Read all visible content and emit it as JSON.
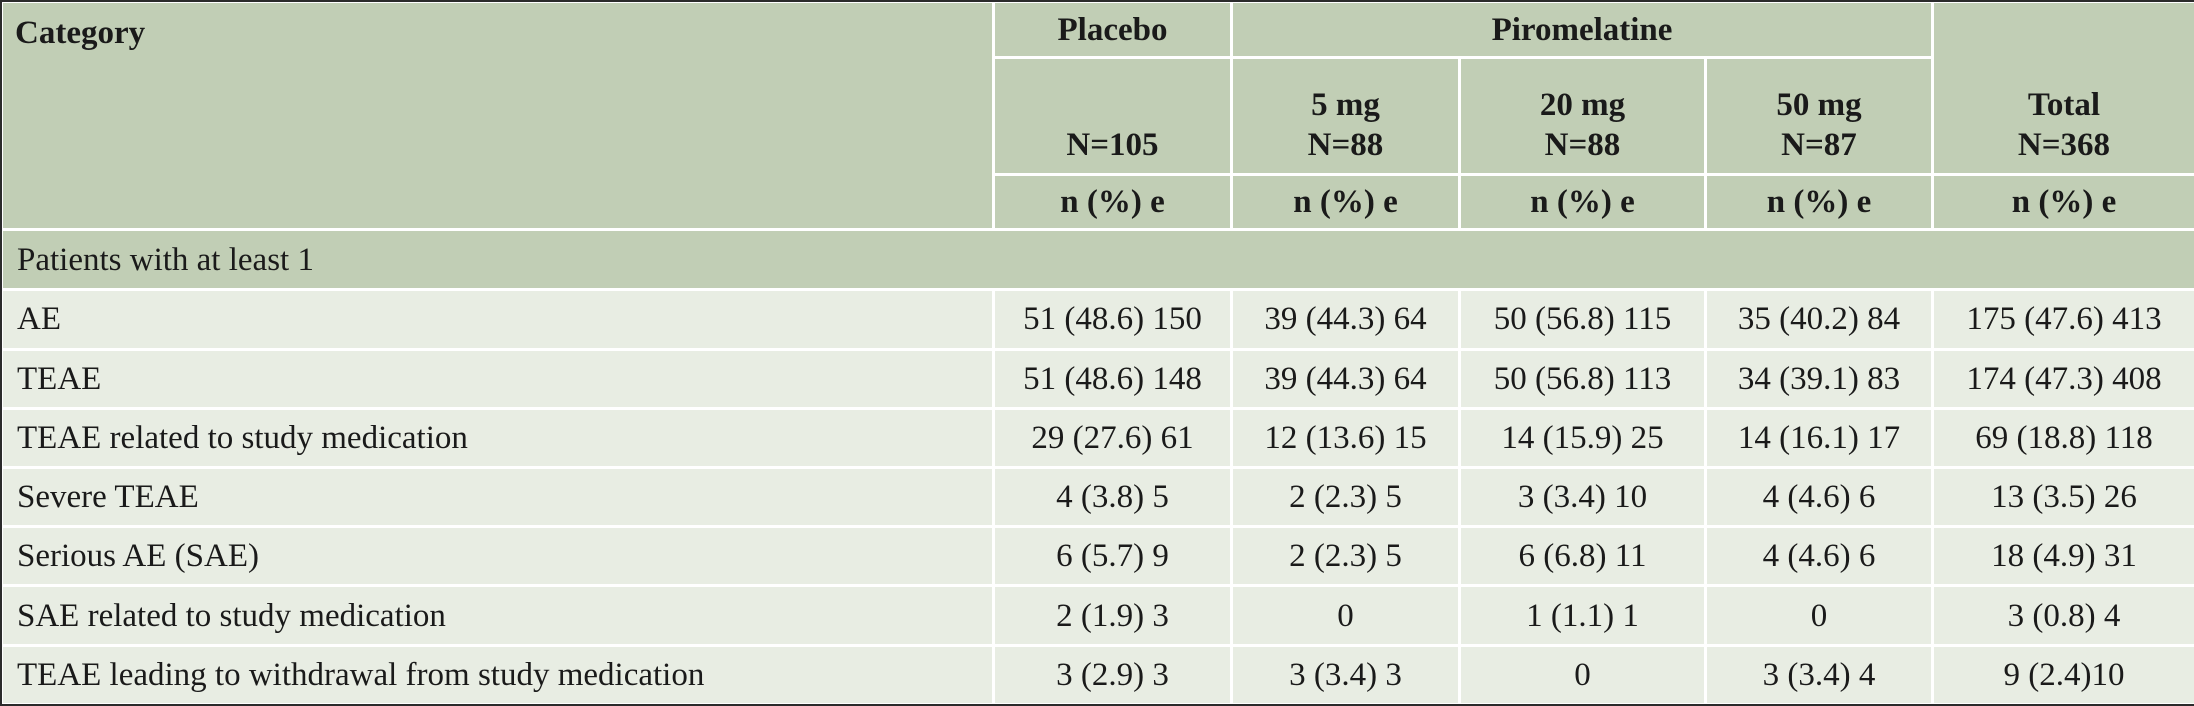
{
  "table": {
    "header": {
      "category": "Category",
      "placebo": "Placebo",
      "piromelatine": "Piromelatine",
      "columns": [
        {
          "lines": [
            "N=105"
          ],
          "stat": "n (%) e"
        },
        {
          "lines": [
            "5 mg",
            "N=88"
          ],
          "stat": "n (%) e"
        },
        {
          "lines": [
            "20 mg",
            "N=88"
          ],
          "stat": "n (%) e"
        },
        {
          "lines": [
            "50 mg",
            "N=87"
          ],
          "stat": "n (%) e"
        },
        {
          "lines": [
            "Total",
            "N=368"
          ],
          "stat": "n (%) e"
        }
      ]
    },
    "section": "Patients with at least 1",
    "rows": [
      {
        "label": "AE",
        "values": [
          "51 (48.6) 150",
          "39 (44.3) 64",
          "50 (56.8) 115",
          "35 (40.2) 84",
          "175 (47.6) 413"
        ]
      },
      {
        "label": "TEAE",
        "values": [
          "51 (48.6) 148",
          "39 (44.3) 64",
          "50 (56.8) 113",
          "34 (39.1) 83",
          "174 (47.3) 408"
        ]
      },
      {
        "label": "TEAE related to study medication",
        "values": [
          "29 (27.6) 61",
          "12 (13.6) 15",
          "14 (15.9) 25",
          "14 (16.1) 17",
          "69 (18.8) 118"
        ]
      },
      {
        "label": "Severe TEAE",
        "values": [
          "4 (3.8) 5",
          "2 (2.3) 5",
          "3 (3.4) 10",
          "4 (4.6) 6",
          "13 (3.5) 26"
        ]
      },
      {
        "label": "Serious AE (SAE)",
        "values": [
          "6 (5.7) 9",
          "2 (2.3) 5",
          "6 (6.8) 11",
          "4 (4.6) 6",
          "18 (4.9) 31"
        ]
      },
      {
        "label": "SAE related to study medication",
        "values": [
          "2 (1.9) 3",
          "0",
          "1 (1.1) 1",
          "0",
          "3 (0.8) 4"
        ]
      },
      {
        "label": "TEAE leading to withdrawal from study medication",
        "values": [
          "3 (2.9) 3",
          "3 (3.4) 3",
          "0",
          "3 (3.4) 4",
          "9 (2.4)10"
        ]
      }
    ]
  }
}
